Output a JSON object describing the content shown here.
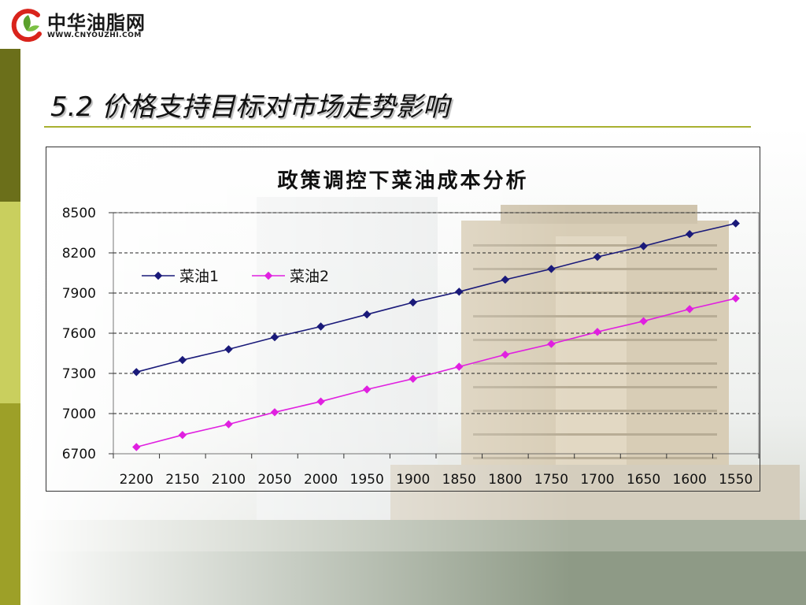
{
  "colors": {
    "bar_dark": "#6b6f1a",
    "bar_light": "#c9cf5e",
    "bar_mid": "#9da028",
    "series1": "#1a1a7a",
    "series2": "#e020e0",
    "logo_green": "#5aa02c",
    "logo_red": "#d9241c"
  },
  "logo": {
    "icon": "leaf-c-logo-icon",
    "cn": "中华油脂网",
    "en": "WWW.CNYOUZHI.COM"
  },
  "slide": {
    "title": "5.2 价格支持目标对市场走势影响"
  },
  "chart_data": {
    "type": "line",
    "title": "政策调控下菜油成本分析",
    "xlabel": "",
    "ylabel": "",
    "categories": [
      "2200",
      "2150",
      "2100",
      "2050",
      "2000",
      "1950",
      "1900",
      "1850",
      "1800",
      "1750",
      "1700",
      "1650",
      "1600",
      "1550"
    ],
    "series": [
      {
        "name": "菜油1",
        "color": "#1a1a7a",
        "marker": "diamond",
        "values": [
          7310,
          7400,
          7480,
          7570,
          7650,
          7740,
          7830,
          7910,
          8000,
          8080,
          8170,
          8250,
          8340,
          8420
        ]
      },
      {
        "name": "菜油2",
        "color": "#e020e0",
        "marker": "diamond",
        "values": [
          6750,
          6840,
          6920,
          7010,
          7090,
          7180,
          7260,
          7350,
          7440,
          7520,
          7610,
          7690,
          7780,
          7860
        ]
      }
    ],
    "ylim": [
      6700,
      8500
    ],
    "yticks": [
      6700,
      7000,
      7300,
      7600,
      7900,
      8200,
      8500
    ],
    "grid": true,
    "legend": "top-left"
  }
}
